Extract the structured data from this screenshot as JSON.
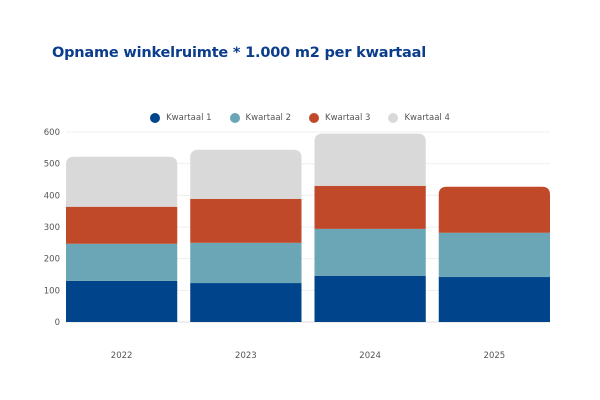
{
  "chart_data": {
    "type": "bar",
    "stacked": true,
    "title": "Opname winkelruimte * 1.000 m2 per kwartaal",
    "xlabel": "",
    "ylabel": "",
    "categories": [
      "2022",
      "2023",
      "2024",
      "2025"
    ],
    "series": [
      {
        "name": "Kwartaal 1",
        "color": "#00448b",
        "values": [
          130,
          123,
          146,
          142
        ]
      },
      {
        "name": "Kwartaal 2",
        "color": "#6aa6b5",
        "values": [
          117,
          127,
          148,
          140
        ]
      },
      {
        "name": "Kwartaal 3",
        "color": "#c0492a",
        "values": [
          117,
          139,
          136,
          145
        ]
      },
      {
        "name": "Kwartaal 4",
        "color": "#d9d9d9",
        "values": [
          158,
          155,
          165,
          null
        ]
      }
    ],
    "ylim": [
      0,
      600
    ],
    "yticks": [
      0,
      100,
      200,
      300,
      400,
      500,
      600
    ],
    "grid": true,
    "legend_position": "top-center"
  }
}
